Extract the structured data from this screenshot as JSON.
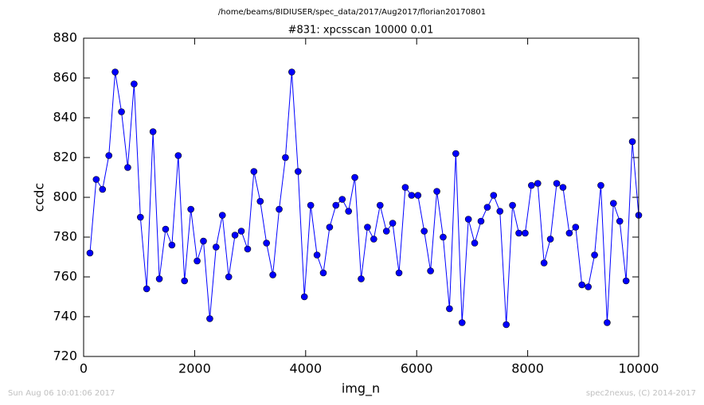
{
  "chart_data": {
    "type": "line",
    "suptitle": "/home/beams/8IDIUSER/spec_data/2017/Aug2017/florian20170801",
    "title": "#831: xpcsscan 10000 0.01",
    "x_label": "img_n",
    "y_label": "ccdc",
    "footer_left": "Sun Aug 06 10:01:06 2017",
    "footer_right": "spec2nexus, (C) 2014-2017",
    "x": [
      114,
      227,
      341,
      455,
      568,
      682,
      795,
      909,
      1023,
      1136,
      1250,
      1364,
      1477,
      1591,
      1705,
      1818,
      1932,
      2045,
      2159,
      2273,
      2386,
      2500,
      2614,
      2727,
      2841,
      2955,
      3068,
      3182,
      3295,
      3409,
      3523,
      3636,
      3750,
      3864,
      3977,
      4091,
      4205,
      4318,
      4432,
      4545,
      4659,
      4773,
      4886,
      5000,
      5114,
      5227,
      5341,
      5455,
      5568,
      5682,
      5795,
      5909,
      6023,
      6136,
      6250,
      6364,
      6477,
      6591,
      6705,
      6818,
      6932,
      7045,
      7159,
      7273,
      7386,
      7500,
      7614,
      7727,
      7841,
      7955,
      8068,
      8182,
      8295,
      8409,
      8523,
      8636,
      8750,
      8864,
      8977,
      9091,
      9205,
      9318,
      9432,
      9545,
      9659,
      9773,
      9886,
      10000
    ],
    "series": [
      {
        "color": "#0000ff",
        "values": [
          772,
          809,
          804,
          821,
          863,
          843,
          815,
          857,
          790,
          754,
          833,
          759,
          784,
          776,
          821,
          758,
          794,
          768,
          778,
          739,
          775,
          791,
          760,
          781,
          783,
          774,
          813,
          798,
          777,
          761,
          794,
          820,
          863,
          813,
          750,
          796,
          771,
          762,
          785,
          796,
          799,
          793,
          810,
          759,
          785,
          779,
          796,
          783,
          787,
          762,
          805,
          801,
          801,
          783,
          763,
          803,
          780,
          744,
          822,
          737,
          789,
          777,
          788,
          795,
          801,
          793,
          736,
          796,
          782,
          782,
          806,
          807,
          767,
          779,
          807,
          805,
          782,
          785,
          756,
          755,
          771,
          806,
          737,
          797,
          788,
          758,
          828,
          791
        ]
      }
    ],
    "xlim": [
      0,
      10000
    ],
    "xticks": [
      0,
      2000,
      4000,
      6000,
      8000,
      10000
    ],
    "ylim": [
      720,
      880
    ],
    "yticks": [
      720,
      740,
      760,
      780,
      800,
      820,
      840,
      860,
      880
    ]
  }
}
